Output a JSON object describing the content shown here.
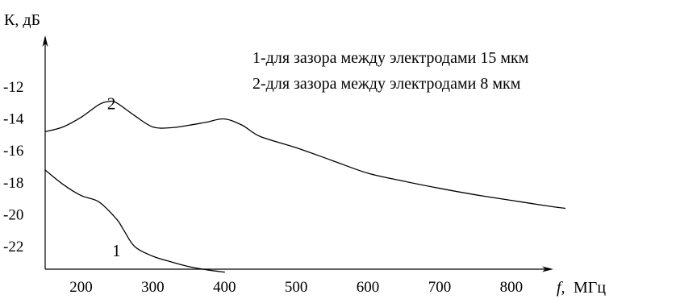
{
  "chart_data": {
    "type": "line",
    "title": "",
    "xlabel": "МГц",
    "xlabel_symbol": "f,",
    "ylabel": "К, дБ",
    "x_ticks": [
      200,
      300,
      400,
      500,
      600,
      700,
      800
    ],
    "y_ticks": [
      -12,
      -14,
      -16,
      -18,
      -20,
      -22
    ],
    "xlim": [
      150,
      900
    ],
    "ylim": [
      -24,
      -11
    ],
    "grid": false,
    "legend_position": "top-right",
    "legend": [
      "1-для зазора между электродами 15 мкм",
      "2-для зазора между электродами  8  мкм"
    ],
    "series": [
      {
        "name": "1",
        "x": [
          150,
          175,
          200,
          225,
          250,
          260,
          275,
          300,
          325,
          350,
          375,
          400
        ],
        "y": [
          -17.2,
          -18.1,
          -18.8,
          -19.2,
          -20.3,
          -21.0,
          -22.0,
          -22.6,
          -22.95,
          -23.25,
          -23.45,
          -23.6
        ]
      },
      {
        "name": "2",
        "x": [
          150,
          175,
          200,
          225,
          240,
          250,
          275,
          300,
          325,
          350,
          375,
          400,
          425,
          450,
          500,
          550,
          600,
          650,
          700,
          750,
          800,
          850,
          875
        ],
        "y": [
          -14.8,
          -14.5,
          -13.9,
          -13.1,
          -12.9,
          -13.0,
          -13.8,
          -14.5,
          -14.55,
          -14.4,
          -14.2,
          -14.0,
          -14.4,
          -15.1,
          -15.8,
          -16.6,
          -17.4,
          -17.9,
          -18.35,
          -18.75,
          -19.1,
          -19.45,
          -19.6
        ]
      }
    ],
    "curve_labels": [
      {
        "text": "1",
        "series": "1",
        "x": 392,
        "y": -22.6
      },
      {
        "text": "2",
        "series": "2",
        "x": 385,
        "y": -13.4
      }
    ]
  }
}
